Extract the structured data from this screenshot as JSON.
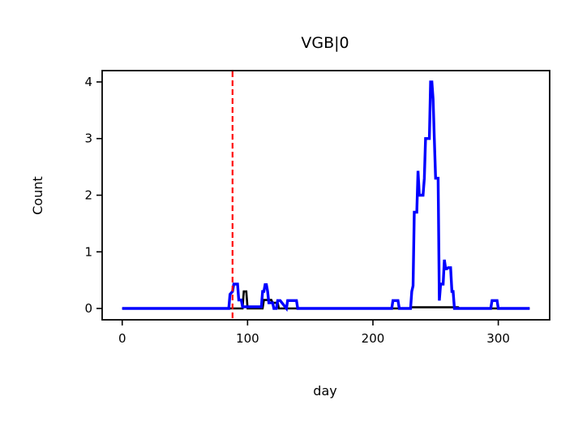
{
  "chart_data": {
    "type": "line",
    "title": "VGB|0",
    "xlabel": "day",
    "ylabel": "Count",
    "xlim": [
      -16,
      341
    ],
    "ylim": [
      -0.2,
      4.2
    ],
    "xticks": [
      0,
      100,
      200,
      300
    ],
    "yticks": [
      0,
      1,
      2,
      3,
      4
    ],
    "grid": false,
    "vline": {
      "x": 88,
      "color": "#ff0000",
      "style": "dashed"
    },
    "series": [
      {
        "color": "#000000",
        "x": [
          0,
          96,
          97,
          99,
          100,
          112,
          113,
          119,
          120,
          124,
          125,
          230,
          231,
          268,
          269,
          325
        ],
        "y": [
          0,
          0,
          0.3,
          0.3,
          0,
          0,
          0.15,
          0.15,
          0.1,
          0.1,
          0,
          0,
          0.02,
          0.02,
          0,
          0
        ]
      },
      {
        "color": "#0000ff",
        "x": [
          0,
          85,
          86,
          88,
          89,
          90,
          92,
          93,
          95,
          96,
          111,
          112,
          113,
          114,
          115,
          116,
          117,
          120,
          121,
          123,
          124,
          125,
          126,
          131,
          132,
          134,
          135,
          139,
          140,
          215,
          216,
          220,
          221,
          230,
          231,
          232,
          233,
          234,
          235,
          236,
          237,
          238,
          239,
          240,
          241,
          242,
          243,
          244,
          245,
          246,
          247,
          248,
          249,
          250,
          251,
          252,
          253,
          254,
          255,
          256,
          257,
          258,
          259,
          260,
          261,
          262,
          263,
          264,
          265,
          266,
          267,
          268,
          269,
          270,
          294,
          295,
          299,
          300,
          325
        ],
        "y": [
          0,
          0,
          0.25,
          0.3,
          0.43,
          0.43,
          0.43,
          0.15,
          0.15,
          0.03,
          0.03,
          0.3,
          0.3,
          0.42,
          0.42,
          0.3,
          0.1,
          0.1,
          0.0,
          0.0,
          0.14,
          0.14,
          0.14,
          0.0,
          0.14,
          0.14,
          0.14,
          0.14,
          0.0,
          0.0,
          0.14,
          0.14,
          0.0,
          0.0,
          0.3,
          0.4,
          1.7,
          1.7,
          1.7,
          2.43,
          2.0,
          2.0,
          2.0,
          2.0,
          2.3,
          3.0,
          3.0,
          3.0,
          3.0,
          4.0,
          4.0,
          3.7,
          3.0,
          2.3,
          2.3,
          2.3,
          0.14,
          0.43,
          0.43,
          0.43,
          0.86,
          0.7,
          0.7,
          0.72,
          0.72,
          0.72,
          0.3,
          0.3,
          0.0,
          0.0,
          0.0,
          0.0,
          0.0,
          0.0,
          0.0,
          0.14,
          0.14,
          0.0,
          0.0
        ]
      }
    ]
  }
}
